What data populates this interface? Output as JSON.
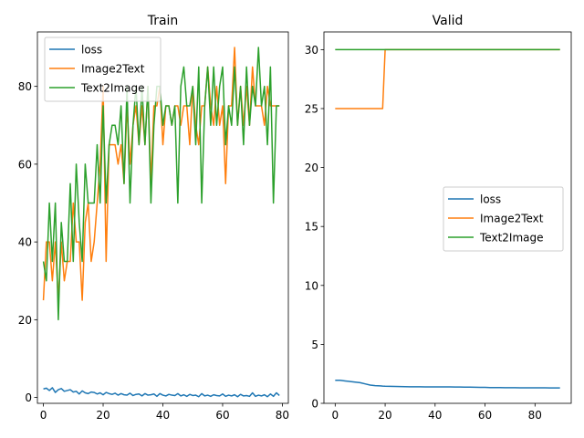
{
  "chart_data": [
    {
      "type": "line",
      "title": "Train",
      "xlabel": "",
      "ylabel": "",
      "xlim": [
        -2,
        82
      ],
      "ylim": [
        -1.5,
        94
      ],
      "xticks": [
        0,
        20,
        40,
        60,
        80
      ],
      "yticks": [
        0,
        20,
        40,
        60,
        80
      ],
      "grid": false,
      "legend": "top-left",
      "x": [
        0,
        1,
        2,
        3,
        4,
        5,
        6,
        7,
        8,
        9,
        10,
        11,
        12,
        13,
        14,
        15,
        16,
        17,
        18,
        19,
        20,
        21,
        22,
        23,
        24,
        25,
        26,
        27,
        28,
        29,
        30,
        31,
        32,
        33,
        34,
        35,
        36,
        37,
        38,
        39,
        40,
        41,
        42,
        43,
        44,
        45,
        46,
        47,
        48,
        49,
        50,
        51,
        52,
        53,
        54,
        55,
        56,
        57,
        58,
        59,
        60,
        61,
        62,
        63,
        64,
        65,
        66,
        67,
        68,
        69,
        70,
        71,
        72,
        73,
        74,
        75,
        76,
        77,
        78,
        79
      ],
      "series": [
        {
          "name": "loss",
          "color": "#1f77b4",
          "values": [
            2.2,
            2.4,
            1.8,
            2.5,
            1.3,
            2.0,
            2.3,
            1.6,
            1.8,
            2.0,
            1.4,
            1.6,
            0.9,
            1.7,
            1.2,
            1.0,
            1.4,
            1.3,
            0.9,
            1.2,
            0.7,
            1.3,
            1.0,
            0.8,
            1.1,
            0.6,
            1.0,
            0.7,
            0.6,
            1.1,
            0.5,
            0.8,
            0.9,
            0.4,
            1.0,
            0.6,
            0.7,
            0.9,
            0.3,
            1.0,
            0.6,
            0.4,
            0.8,
            0.6,
            0.5,
            1.0,
            0.4,
            0.7,
            0.3,
            0.8,
            0.5,
            0.6,
            0.2,
            1.0,
            0.4,
            0.6,
            0.3,
            0.7,
            0.5,
            0.4,
            0.9,
            0.3,
            0.6,
            0.4,
            0.7,
            0.2,
            0.8,
            0.4,
            0.5,
            0.3,
            1.2,
            0.3,
            0.6,
            0.4,
            0.7,
            0.2,
            0.9,
            0.3,
            1.2,
            0.5
          ]
        },
        {
          "name": "Image2Text",
          "color": "#ff7f0e",
          "values": [
            25,
            40,
            40,
            30,
            40,
            25,
            40,
            30,
            35,
            35,
            50,
            40,
            40,
            25,
            45,
            50,
            35,
            40,
            50,
            60,
            80,
            35,
            65,
            65,
            65,
            60,
            65,
            55,
            75,
            60,
            70,
            75,
            65,
            75,
            65,
            80,
            55,
            75,
            75,
            80,
            65,
            75,
            75,
            70,
            75,
            75,
            70,
            75,
            75,
            65,
            80,
            70,
            65,
            75,
            75,
            85,
            75,
            70,
            80,
            70,
            75,
            55,
            75,
            75,
            90,
            70,
            80,
            70,
            80,
            70,
            85,
            75,
            75,
            75,
            70,
            80,
            75,
            75,
            75,
            75
          ]
        },
        {
          "name": "Text2Image",
          "color": "#2ca02c",
          "values": [
            35,
            30,
            50,
            35,
            50,
            20,
            45,
            35,
            35,
            55,
            35,
            60,
            45,
            35,
            60,
            50,
            50,
            50,
            65,
            50,
            75,
            50,
            65,
            70,
            70,
            65,
            75,
            55,
            80,
            50,
            70,
            80,
            65,
            80,
            65,
            80,
            50,
            70,
            80,
            80,
            70,
            75,
            75,
            70,
            75,
            50,
            80,
            85,
            75,
            75,
            80,
            65,
            85,
            50,
            75,
            85,
            70,
            85,
            70,
            80,
            85,
            65,
            75,
            70,
            85,
            70,
            80,
            65,
            85,
            70,
            80,
            75,
            90,
            75,
            80,
            65,
            85,
            50,
            75,
            75
          ]
        }
      ]
    },
    {
      "type": "line",
      "title": "Valid",
      "xlabel": "",
      "ylabel": "",
      "xlim": [
        -4.5,
        94.5
      ],
      "ylim": [
        0,
        31.5
      ],
      "xticks": [
        0,
        20,
        40,
        60,
        80
      ],
      "yticks": [
        0,
        5,
        10,
        15,
        20,
        25,
        30
      ],
      "grid": false,
      "legend": "center-right",
      "x": [
        0,
        2,
        4,
        6,
        8,
        10,
        12,
        14,
        16,
        18,
        19,
        20,
        22,
        24,
        26,
        28,
        30,
        32,
        34,
        36,
        38,
        40,
        42,
        44,
        46,
        48,
        50,
        52,
        54,
        56,
        58,
        60,
        62,
        64,
        66,
        68,
        70,
        72,
        74,
        76,
        78,
        80,
        82,
        84,
        86,
        88,
        90
      ],
      "series": [
        {
          "name": "loss",
          "color": "#1f77b4",
          "values": [
            1.95,
            1.95,
            1.9,
            1.85,
            1.8,
            1.75,
            1.65,
            1.55,
            1.5,
            1.48,
            1.46,
            1.45,
            1.44,
            1.43,
            1.42,
            1.41,
            1.4,
            1.4,
            1.4,
            1.39,
            1.39,
            1.39,
            1.39,
            1.39,
            1.39,
            1.38,
            1.38,
            1.37,
            1.37,
            1.36,
            1.35,
            1.35,
            1.34,
            1.34,
            1.34,
            1.33,
            1.33,
            1.33,
            1.32,
            1.32,
            1.32,
            1.32,
            1.32,
            1.32,
            1.31,
            1.31,
            1.31
          ]
        },
        {
          "name": "Image2Text",
          "color": "#ff7f0e",
          "values": [
            25,
            25,
            25,
            25,
            25,
            25,
            25,
            25,
            25,
            25,
            25,
            30,
            30,
            30,
            30,
            30,
            30,
            30,
            30,
            30,
            30,
            30,
            30,
            30,
            30,
            30,
            30,
            30,
            30,
            30,
            30,
            30,
            30,
            30,
            30,
            30,
            30,
            30,
            30,
            30,
            30,
            30,
            30,
            30,
            30,
            30,
            30
          ]
        },
        {
          "name": "Text2Image",
          "color": "#2ca02c",
          "values": [
            30,
            30,
            30,
            30,
            30,
            30,
            30,
            30,
            30,
            30,
            30,
            30,
            30,
            30,
            30,
            30,
            30,
            30,
            30,
            30,
            30,
            30,
            30,
            30,
            30,
            30,
            30,
            30,
            30,
            30,
            30,
            30,
            30,
            30,
            30,
            30,
            30,
            30,
            30,
            30,
            30,
            30,
            30,
            30,
            30,
            30,
            30
          ]
        }
      ]
    }
  ]
}
